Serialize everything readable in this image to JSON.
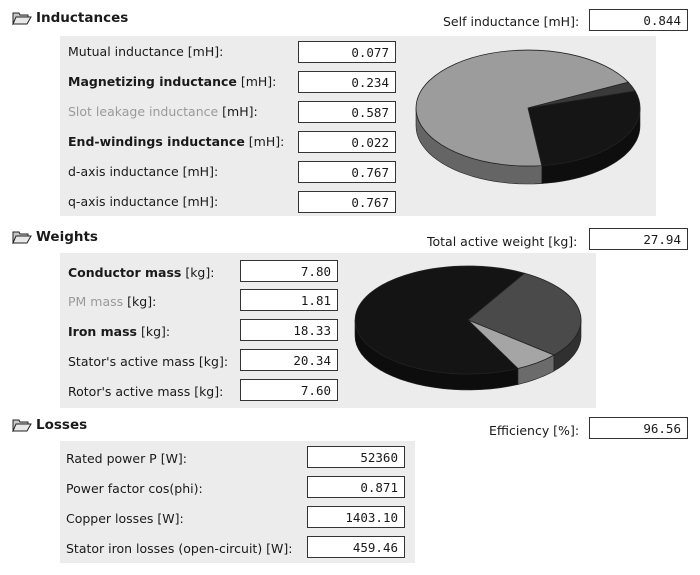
{
  "inductances": {
    "title": "Inductances",
    "self_label": "Self inductance [mH]:",
    "self_value": "0.844",
    "rows": [
      {
        "name": "Mutual inductance",
        "unit": " [mH]:",
        "value": "0.077"
      },
      {
        "name": "Magnetizing inductance",
        "unit": " [mH]:",
        "value": "0.234"
      },
      {
        "name": "Slot leakage inductance",
        "unit": " [mH]:",
        "value": "0.587"
      },
      {
        "name": "End-windings inductance",
        "unit": " [mH]:",
        "value": "0.022"
      },
      {
        "name": "d-axis inductance",
        "unit": " [mH]:",
        "value": "0.767"
      },
      {
        "name": "q-axis inductance",
        "unit": " [mH]:",
        "value": "0.767"
      }
    ]
  },
  "weights": {
    "title": "Weights",
    "total_label": "Total active weight [kg]:",
    "total_value": "27.94",
    "rows": [
      {
        "name": "Conductor mass",
        "unit": " [kg]:",
        "value": "7.80"
      },
      {
        "name": "PM mass",
        "unit": " [kg]:",
        "value": "1.81"
      },
      {
        "name": "Iron mass",
        "unit": " [kg]:",
        "value": "18.33"
      },
      {
        "name": "Stator's active mass",
        "unit": " [kg]:",
        "value": "20.34"
      },
      {
        "name": "Rotor's active mass",
        "unit": " [kg]:",
        "value": "7.60"
      }
    ]
  },
  "losses": {
    "title": "Losses",
    "eff_label": "Efficiency [%]:",
    "eff_value": "96.56",
    "rows": [
      {
        "name": "Rated power P [W]:",
        "value": "52360"
      },
      {
        "name": "Power factor cos(phi):",
        "value": "0.871"
      },
      {
        "name": "Copper losses [W]:",
        "value": "1403.10"
      },
      {
        "name": "Stator iron losses (open-circuit) [W]:",
        "value": "459.46"
      }
    ]
  },
  "chart_data": [
    {
      "type": "pie",
      "title": "",
      "categories": [
        "Magnetizing inductance",
        "Slot leakage inductance",
        "End-windings inductance"
      ],
      "values": [
        0.234,
        0.587,
        0.022
      ],
      "colors": [
        "#151515",
        "#9c9c9c",
        "#3a3a3a"
      ]
    },
    {
      "type": "pie",
      "title": "",
      "categories": [
        "Conductor mass",
        "PM mass",
        "Iron mass"
      ],
      "values": [
        7.8,
        1.81,
        18.33
      ],
      "colors": [
        "#4a4a4a",
        "#a5a5a5",
        "#141414"
      ]
    }
  ],
  "colors": {
    "panel": "#ececec",
    "field_border": "#333333"
  },
  "icons": {
    "section": "folder-open-icon"
  }
}
